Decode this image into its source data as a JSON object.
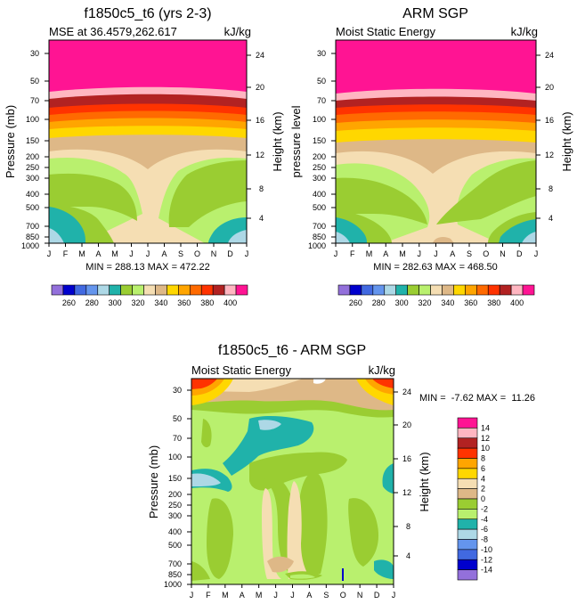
{
  "chart_data": [
    {
      "type": "heatmap",
      "title": "f1850c5_t6 (yrs 2-3)",
      "subtitle_left": "MSE at 36.4579,262.617",
      "subtitle_right": "kJ/kg",
      "xlabel": "",
      "ylabel": "Pressure (mb)",
      "ylabel_right": "Height (km)",
      "x_ticks": [
        "J",
        "F",
        "M",
        "A",
        "M",
        "J",
        "J",
        "A",
        "S",
        "O",
        "N",
        "D",
        "J"
      ],
      "y_ticks": [
        "30",
        "50",
        "70",
        "100",
        "150",
        "200",
        "250",
        "300",
        "400",
        "500",
        "700",
        "850",
        "1000"
      ],
      "y_ticks_right": [
        "24",
        "20",
        "16",
        "12",
        "8",
        "4"
      ],
      "minmax_label": "MIN = 288.13 MAX = 472.22",
      "colorbar_labels": [
        "260",
        "280",
        "300",
        "320",
        "340",
        "360",
        "380",
        "400"
      ],
      "levels": [
        260,
        270,
        280,
        290,
        300,
        310,
        320,
        330,
        340,
        350,
        360,
        370,
        380,
        390,
        400
      ],
      "bands": [
        {
          "level_top_mb": 30,
          "value": 405
        },
        {
          "level_top_mb": 62,
          "value": 395
        },
        {
          "level_top_mb": 72,
          "value": 385
        },
        {
          "level_top_mb": 86,
          "value": 375
        },
        {
          "level_top_mb": 104,
          "value": 365
        },
        {
          "level_top_mb": 128,
          "value": 355
        },
        {
          "level_top_mb": 150,
          "value": 345
        },
        {
          "level_top_mb": 175,
          "value": 335
        }
      ]
    },
    {
      "type": "heatmap",
      "title": "ARM SGP",
      "subtitle_left": "Moist Static Energy",
      "subtitle_right": "kJ/kg",
      "xlabel": "",
      "ylabel": "pressure level",
      "ylabel_right": "Height (km)",
      "x_ticks": [
        "J",
        "F",
        "M",
        "A",
        "M",
        "J",
        "J",
        "A",
        "S",
        "O",
        "N",
        "D",
        "J"
      ],
      "y_ticks": [
        "30",
        "50",
        "70",
        "100",
        "150",
        "200",
        "250",
        "300",
        "400",
        "500",
        "700",
        "850",
        "1000"
      ],
      "y_ticks_right": [
        "24",
        "20",
        "16",
        "12",
        "8",
        "4"
      ],
      "minmax_label": "MIN = 282.63 MAX = 468.50",
      "colorbar_labels": [
        "260",
        "280",
        "300",
        "320",
        "340",
        "360",
        "380",
        "400"
      ],
      "levels": [
        260,
        270,
        280,
        290,
        300,
        310,
        320,
        330,
        340,
        350,
        360,
        370,
        380,
        390,
        400
      ]
    },
    {
      "type": "heatmap",
      "title": "f1850c5_t6 - ARM SGP",
      "subtitle_left": "Moist Static Energy",
      "subtitle_right": "kJ/kg",
      "xlabel": "",
      "ylabel": "Pressure (mb)",
      "ylabel_right": "Height (km)",
      "x_ticks": [
        "J",
        "F",
        "M",
        "A",
        "M",
        "J",
        "J",
        "A",
        "S",
        "O",
        "N",
        "D",
        "J"
      ],
      "y_ticks": [
        "30",
        "50",
        "70",
        "100",
        "150",
        "200",
        "250",
        "300",
        "400",
        "500",
        "700",
        "850",
        "1000"
      ],
      "y_ticks_right": [
        "24",
        "20",
        "16",
        "12",
        "8",
        "4"
      ],
      "minmax_label": "MIN =  -7.62 MAX =  11.26",
      "colorbar_labels": [
        "14",
        "12",
        "10",
        "8",
        "6",
        "4",
        "2",
        "0",
        "-2",
        "-4",
        "-6",
        "-8",
        "-10",
        "-12",
        "-14"
      ],
      "levels": [
        -14,
        -12,
        -10,
        -8,
        -6,
        -4,
        -2,
        0,
        2,
        4,
        6,
        8,
        10,
        12,
        14
      ]
    }
  ],
  "colors": {
    "mse_palette": [
      "#9370db",
      "#0000cd",
      "#4169e1",
      "#6495ed",
      "#add8e6",
      "#20b2aa",
      "#9acd32",
      "#b9f06e",
      "#f5deb3",
      "#deb887",
      "#ffd700",
      "#ffa500",
      "#ff6a00",
      "#ff3300",
      "#b22222",
      "#ffb6c1",
      "#ff1493"
    ],
    "diff_palette": [
      "#ff1493",
      "#ffb6c1",
      "#b22222",
      "#ff3300",
      "#ffa500",
      "#ffd700",
      "#f5deb3",
      "#deb887",
      "#9acd32",
      "#b9f06e",
      "#20b2aa",
      "#add8e6",
      "#6495ed",
      "#4169e1",
      "#0000cd",
      "#9370db"
    ]
  }
}
